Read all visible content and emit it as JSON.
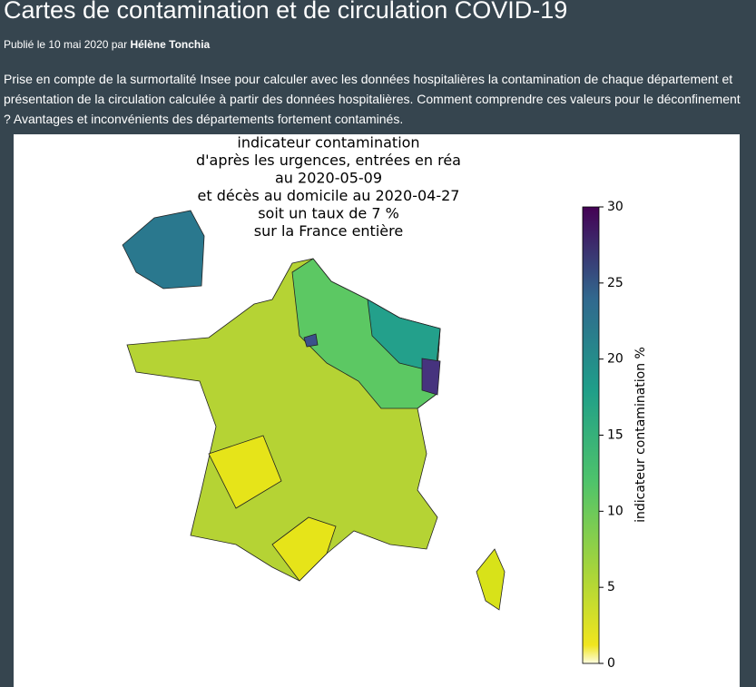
{
  "header": {
    "title": "Cartes de contamination et de circulation COVID-19",
    "published": "Publié le 10 mai 2020 par",
    "author": "Hélène Tonchia"
  },
  "intro": "Prise en compte de la surmortalité Insee pour calculer avec les données hospitalières la contamination de chaque département et présentation de la circulation calculée à partir des données hospitalières. Comment comprendre ces valeurs pour le déconfinement ? Avantages et inconvénients des départements fortement contaminés.",
  "figure": {
    "title_lines": [
      "indicateur contamination",
      "d'après les urgences, entrées en réa",
      "au 2020-05-09",
      "et décès au domicile au 2020-04-27",
      "soit un taux de 7 %",
      "sur la France entière"
    ],
    "colorbar": {
      "label": "indicateur contamination %",
      "range": [
        0,
        30
      ],
      "ticks": [
        0,
        5,
        10,
        15,
        20,
        25,
        30
      ]
    }
  }
}
